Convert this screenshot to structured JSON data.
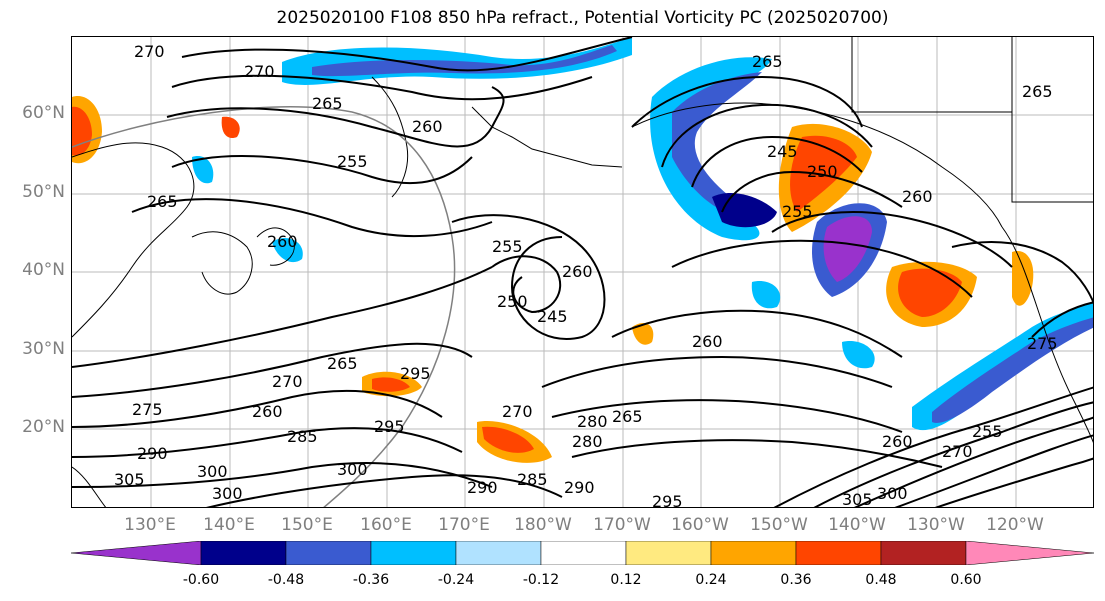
{
  "title": "2025020100 F108 850 hPa refract., Potential Vorticity PC (2025020700)",
  "lat_labels": [
    "60°N",
    "50°N",
    "40°N",
    "30°N",
    "20°N"
  ],
  "lon_labels": [
    "130°E",
    "140°E",
    "150°E",
    "160°E",
    "170°E",
    "180°W",
    "170°W",
    "160°W",
    "150°W",
    "140°W",
    "130°W",
    "120°W"
  ],
  "colorbar": {
    "colors": [
      "#9932cc",
      "#00008b",
      "#3a5bd0",
      "#00bfff",
      "#b0e2ff",
      "#ffffff",
      "#ffea80",
      "#ffa500",
      "#ff4500",
      "#b22222",
      "#ff88b8"
    ],
    "tick_labels": [
      "-0.60",
      "-0.48",
      "-0.36",
      "-0.24",
      "-0.12",
      "0.12",
      "0.24",
      "0.36",
      "0.48",
      "0.60"
    ]
  },
  "contour_labels": [
    "270",
    "270",
    "265",
    "260",
    "255",
    "265",
    "265",
    "260",
    "255",
    "250",
    "245",
    "260",
    "265",
    "260",
    "255",
    "250",
    "245",
    "265",
    "260",
    "270",
    "260",
    "275",
    "290",
    "305",
    "300",
    "285",
    "295",
    "295",
    "300",
    "270",
    "265",
    "280",
    "285",
    "290",
    "290",
    "295",
    "300",
    "300",
    "305",
    "260",
    "255",
    "270",
    "275",
    "280"
  ]
}
